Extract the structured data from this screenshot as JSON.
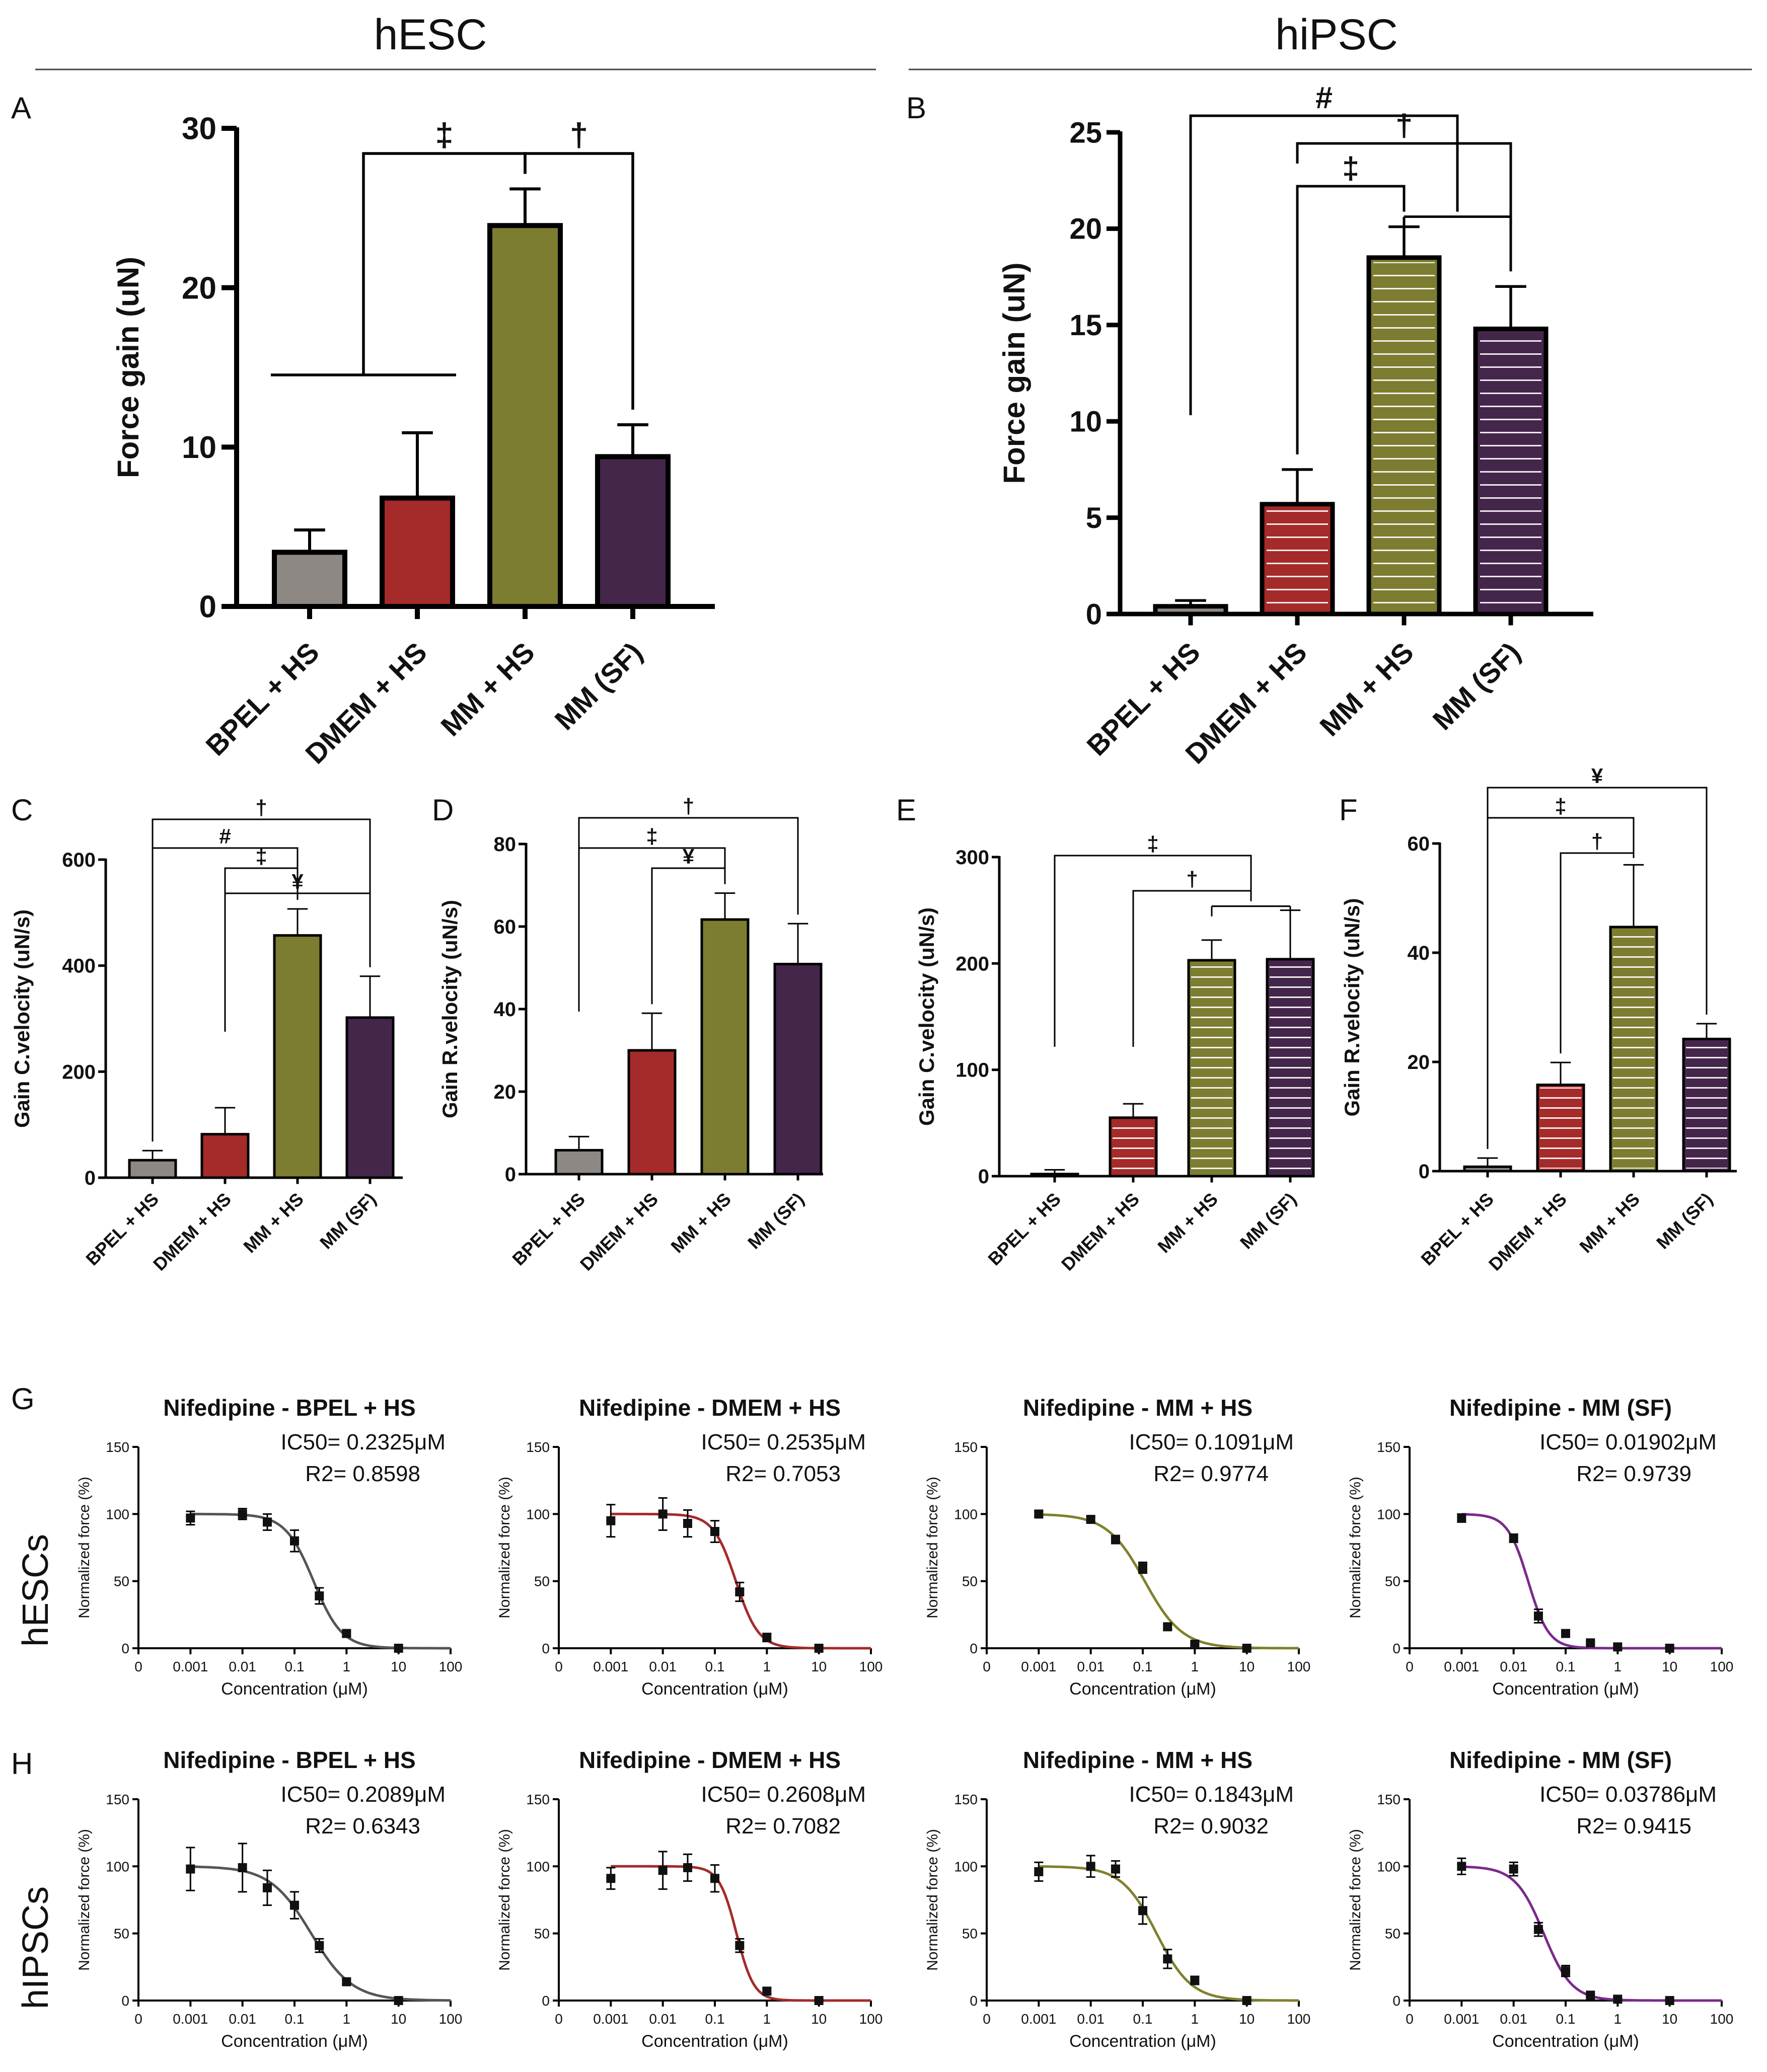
{
  "headers": {
    "left": "hESC",
    "right": "hiPSC"
  },
  "row_labels": {
    "G": "hESCs",
    "H": "hIPSCs"
  },
  "chart_data": [
    {
      "panel": "A",
      "type": "bar",
      "ylabel": "Force gain (uN)",
      "ylim": [
        0,
        30
      ],
      "yticks": [
        0,
        10,
        20,
        30
      ],
      "categories": [
        "BPEL + HS",
        "DMEM + HS",
        "MM + HS",
        "MM (SF)"
      ],
      "values": [
        3.4,
        6.8,
        23.9,
        9.4
      ],
      "errors": [
        1.4,
        4.1,
        2.3,
        2.0
      ],
      "colors": [
        "#8d8883",
        "#a52a2a",
        "#7c7d30",
        "#45264b"
      ],
      "style": "solid",
      "annotations": [
        {
          "symbol": "‡",
          "from": [
            0,
            1
          ],
          "to": [
            2
          ]
        },
        {
          "symbol": "†",
          "from": [
            2
          ],
          "to": [
            3
          ]
        }
      ]
    },
    {
      "panel": "B",
      "type": "bar",
      "ylabel": "Force gain (uN)",
      "ylim": [
        0,
        25
      ],
      "yticks": [
        0,
        5,
        10,
        15,
        20,
        25
      ],
      "categories": [
        "BPEL + HS",
        "DMEM + HS",
        "MM + HS",
        "MM (SF)"
      ],
      "values": [
        0.4,
        5.7,
        18.5,
        14.8
      ],
      "errors": [
        0.3,
        1.8,
        1.6,
        2.2
      ],
      "colors": [
        "#8d8883",
        "#a52a2a",
        "#7c7d30",
        "#45264b"
      ],
      "style": "striped",
      "annotations": [
        {
          "symbol": "#",
          "from": [
            0
          ],
          "to": [
            2,
            3
          ]
        },
        {
          "symbol": "†",
          "from": [
            1
          ],
          "to": [
            3
          ]
        },
        {
          "symbol": "‡",
          "from": [
            1
          ],
          "to": [
            2
          ]
        }
      ]
    },
    {
      "panel": "C",
      "type": "bar",
      "ylabel": "Gain C.velocity (uN/s)",
      "ylim": [
        0,
        600
      ],
      "yticks": [
        0,
        200,
        400,
        600
      ],
      "categories": [
        "BPEL + HS",
        "DMEM + HS",
        "MM + HS",
        "MM (SF)"
      ],
      "values": [
        33,
        82,
        457,
        302
      ],
      "errors": [
        18,
        50,
        50,
        78
      ],
      "colors": [
        "#8d8883",
        "#a52a2a",
        "#7c7d30",
        "#45264b"
      ],
      "style": "solid",
      "annotations": [
        {
          "symbol": "†",
          "from": [
            0
          ],
          "to": [
            3
          ]
        },
        {
          "symbol": "#",
          "from": [
            0
          ],
          "to": [
            2
          ]
        },
        {
          "symbol": "‡",
          "from": [
            1
          ],
          "to": [
            2
          ]
        },
        {
          "symbol": "¥",
          "from": [
            1
          ],
          "to": [
            3
          ]
        }
      ]
    },
    {
      "panel": "D",
      "type": "bar",
      "ylabel": "Gain R.velocity (uN/s)",
      "ylim": [
        0,
        80
      ],
      "yticks": [
        0,
        20,
        40,
        60,
        80
      ],
      "categories": [
        "BPEL + HS",
        "DMEM + HS",
        "MM + HS",
        "MM (SF)"
      ],
      "values": [
        5.8,
        30.0,
        61.7,
        50.9
      ],
      "errors": [
        3.3,
        9.0,
        6.4,
        9.8
      ],
      "colors": [
        "#8d8883",
        "#a52a2a",
        "#7c7d30",
        "#45264b"
      ],
      "style": "solid",
      "annotations": [
        {
          "symbol": "†",
          "from": [
            0
          ],
          "to": [
            3
          ]
        },
        {
          "symbol": "‡",
          "from": [
            0
          ],
          "to": [
            2
          ]
        },
        {
          "symbol": "¥",
          "from": [
            1
          ],
          "to": [
            2
          ]
        }
      ]
    },
    {
      "panel": "E",
      "type": "bar",
      "ylabel": "Gain C.velocity (uN/s)",
      "ylim": [
        0,
        300
      ],
      "yticks": [
        0,
        100,
        200,
        300
      ],
      "categories": [
        "BPEL + HS",
        "DMEM + HS",
        "MM + HS",
        "MM (SF)"
      ],
      "values": [
        2,
        55,
        203,
        204
      ],
      "errors": [
        4,
        13,
        19,
        46
      ],
      "colors": [
        "#8d8883",
        "#a52a2a",
        "#7c7d30",
        "#45264b"
      ],
      "style": "striped",
      "annotations": [
        {
          "symbol": "‡",
          "from": [
            0
          ],
          "to": [
            2,
            3
          ]
        },
        {
          "symbol": "†",
          "from": [
            1
          ],
          "to": [
            2,
            3
          ]
        }
      ]
    },
    {
      "panel": "F",
      "type": "bar",
      "ylabel": "Gain R.velocity (uN/s)",
      "ylim": [
        0,
        60
      ],
      "yticks": [
        0,
        20,
        40,
        60
      ],
      "categories": [
        "BPEL + HS",
        "DMEM + HS",
        "MM + HS",
        "MM (SF)"
      ],
      "values": [
        0.8,
        15.8,
        44.7,
        24.2
      ],
      "errors": [
        1.6,
        4.1,
        11.4,
        2.8
      ],
      "colors": [
        "#8d8883",
        "#a52a2a",
        "#7c7d30",
        "#45264b"
      ],
      "style": "striped",
      "annotations": [
        {
          "symbol": "¥",
          "from": [
            0
          ],
          "to": [
            3
          ]
        },
        {
          "symbol": "‡",
          "from": [
            0
          ],
          "to": [
            2
          ]
        },
        {
          "symbol": "†",
          "from": [
            1
          ],
          "to": [
            2
          ]
        }
      ]
    },
    {
      "panel": "G1",
      "type": "scatter",
      "title": "Nifedipine - BPEL + HS",
      "color": "#555555",
      "ic50": "IC50= 0.2325μM",
      "r2": "R2= 0.8598",
      "ic50_value": 0.2325,
      "hill": 1.6,
      "xlabel": "Concentration (μM)",
      "ylabel": "Normalized force (%)",
      "ylim": [
        0,
        150
      ],
      "yticks": [
        0,
        50,
        100,
        150
      ],
      "xticks": [
        "0",
        "0.001",
        "0.01",
        "0.1",
        "1",
        "10",
        "100"
      ],
      "x": [
        0.001,
        0.01,
        0.03,
        0.1,
        0.3,
        1,
        10
      ],
      "y": [
        97,
        100,
        94,
        80,
        39,
        11,
        0
      ],
      "errors": [
        5,
        4,
        6,
        8,
        6,
        2,
        1
      ]
    },
    {
      "panel": "G2",
      "type": "scatter",
      "title": "Nifedipine - DMEM + HS",
      "color": "#a52a2a",
      "ic50": "IC50= 0.2535μM",
      "r2": "R2= 0.7053",
      "ic50_value": 0.2535,
      "hill": 2.0,
      "xlabel": "Concentration (μM)",
      "ylabel": "Normalized force (%)",
      "ylim": [
        0,
        150
      ],
      "yticks": [
        0,
        50,
        100,
        150
      ],
      "xticks": [
        "0",
        "0.001",
        "0.01",
        "0.1",
        "1",
        "10",
        "100"
      ],
      "x": [
        0.001,
        0.01,
        0.03,
        0.1,
        0.3,
        1,
        10
      ],
      "y": [
        95,
        100,
        93,
        87,
        42,
        8,
        0
      ],
      "errors": [
        12,
        12,
        10,
        8,
        7,
        3,
        1
      ]
    },
    {
      "panel": "G3",
      "type": "scatter",
      "title": "Nifedipine - MM + HS",
      "color": "#80802e",
      "ic50": "IC50= 0.1091μM",
      "r2": "R2= 0.9774",
      "ic50_value": 0.1091,
      "hill": 1.2,
      "xlabel": "Concentration (μM)",
      "ylabel": "Normalized force (%)",
      "ylim": [
        0,
        150
      ],
      "yticks": [
        0,
        50,
        100,
        150
      ],
      "xticks": [
        "0",
        "0.001",
        "0.01",
        "0.1",
        "1",
        "10",
        "100"
      ],
      "x": [
        0.001,
        0.01,
        0.03,
        0.1,
        0.3,
        1,
        10
      ],
      "y": [
        100,
        96,
        81,
        60,
        16,
        3,
        0
      ],
      "errors": [
        2,
        2,
        3,
        4,
        2,
        1,
        1
      ]
    },
    {
      "panel": "G4",
      "type": "scatter",
      "title": "Nifedipine - MM (SF)",
      "color": "#7a2a8a",
      "ic50": "IC50= 0.01902μM",
      "r2": "R2= 0.9739",
      "ic50_value": 0.01902,
      "hill": 2.2,
      "xlabel": "Concentration (μM)",
      "ylabel": "Normalized force (%)",
      "ylim": [
        0,
        150
      ],
      "yticks": [
        0,
        50,
        100,
        150
      ],
      "xticks": [
        "0",
        "0.001",
        "0.01",
        "0.1",
        "1",
        "10",
        "100"
      ],
      "x": [
        0.001,
        0.01,
        0.03,
        0.1,
        0.3,
        1,
        10
      ],
      "y": [
        97,
        82,
        24,
        11,
        4,
        1,
        0
      ],
      "errors": [
        3,
        3,
        5,
        2,
        1,
        1,
        1
      ]
    },
    {
      "panel": "H1",
      "type": "scatter",
      "title": "Nifedipine - BPEL + HS",
      "color": "#555555",
      "ic50": "IC50= 0.2089μM",
      "r2": "R2= 0.6343",
      "ic50_value": 0.2089,
      "hill": 1.1,
      "xlabel": "Concentration (μM)",
      "ylabel": "Normalized force (%)",
      "ylim": [
        0,
        150
      ],
      "yticks": [
        0,
        50,
        100,
        150
      ],
      "xticks": [
        "0",
        "0.001",
        "0.01",
        "0.1",
        "1",
        "10",
        "100"
      ],
      "x": [
        0.001,
        0.01,
        0.03,
        0.1,
        0.3,
        1,
        10
      ],
      "y": [
        98,
        99,
        84,
        71,
        41,
        14,
        0
      ],
      "errors": [
        16,
        18,
        13,
        10,
        5,
        2,
        1
      ]
    },
    {
      "panel": "H2",
      "type": "scatter",
      "title": "Nifedipine - DMEM + HS",
      "color": "#a52a2a",
      "ic50": "IC50= 0.2608μM",
      "r2": "R2= 0.7082",
      "ic50_value": 0.2608,
      "hill": 2.6,
      "xlabel": "Concentration (μM)",
      "ylabel": "Normalized force (%)",
      "ylim": [
        0,
        150
      ],
      "yticks": [
        0,
        50,
        100,
        150
      ],
      "xticks": [
        "0",
        "0.001",
        "0.01",
        "0.1",
        "1",
        "10",
        "100"
      ],
      "x": [
        0.001,
        0.01,
        0.03,
        0.1,
        0.3,
        1,
        10
      ],
      "y": [
        91,
        97,
        99,
        91,
        41,
        7,
        0
      ],
      "errors": [
        8,
        14,
        10,
        10,
        5,
        2,
        1
      ]
    },
    {
      "panel": "H3",
      "type": "scatter",
      "title": "Nifedipine - MM + HS",
      "color": "#80802e",
      "ic50": "IC50= 0.1843μM",
      "r2": "R2= 0.9032",
      "ic50_value": 0.1843,
      "hill": 1.3,
      "xlabel": "Concentration (μM)",
      "ylabel": "Normalized force (%)",
      "ylim": [
        0,
        150
      ],
      "yticks": [
        0,
        50,
        100,
        150
      ],
      "xticks": [
        "0",
        "0.001",
        "0.01",
        "0.1",
        "1",
        "10",
        "100"
      ],
      "x": [
        0.001,
        0.01,
        0.03,
        0.1,
        0.3,
        1,
        10
      ],
      "y": [
        96,
        100,
        98,
        67,
        31,
        15,
        0
      ],
      "errors": [
        7,
        8,
        6,
        10,
        7,
        3,
        1
      ]
    },
    {
      "panel": "H4",
      "type": "scatter",
      "title": "Nifedipine - MM (SF)",
      "color": "#7a2a8a",
      "ic50": "IC50= 0.03786μM",
      "r2": "R2= 0.9415",
      "ic50_value": 0.03786,
      "hill": 1.6,
      "xlabel": "Concentration (μM)",
      "ylabel": "Normalized force (%)",
      "ylim": [
        0,
        150
      ],
      "yticks": [
        0,
        50,
        100,
        150
      ],
      "xticks": [
        "0",
        "0.001",
        "0.01",
        "0.1",
        "1",
        "10",
        "100"
      ],
      "x": [
        0.001,
        0.01,
        0.03,
        0.1,
        0.3,
        1,
        10
      ],
      "y": [
        100,
        98,
        53,
        22,
        4,
        1,
        0
      ],
      "errors": [
        6,
        5,
        5,
        4,
        1,
        1,
        1
      ]
    }
  ]
}
